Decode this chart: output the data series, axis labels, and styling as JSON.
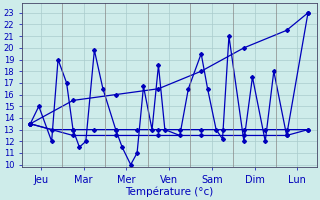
{
  "xlabel": "Température (°c)",
  "ylim": [
    9.8,
    23.8
  ],
  "yticks": [
    10,
    11,
    12,
    13,
    14,
    15,
    16,
    17,
    18,
    19,
    20,
    21,
    22,
    23
  ],
  "background_color": "#ceecea",
  "grid_color": "#aacccc",
  "line_color": "#0000bb",
  "days": [
    "Jeu",
    "Mar",
    "Mer",
    "Ven",
    "Sam",
    "Dim",
    "Lun"
  ],
  "line1_x": [
    0.5,
    1.0,
    1.5,
    2.0,
    2.5,
    3.0,
    3.5,
    4.0,
    4.5,
    5.0,
    5.5,
    6.0,
    6.5,
    7.0
  ],
  "line1_y": [
    13.5,
    13.0,
    13.0,
    13.0,
    13.0,
    13.0,
    13.0,
    13.0,
    13.0,
    13.0,
    13.0,
    13.0,
    13.0,
    13.0
  ],
  "line2_x": [
    0.5,
    1.5,
    2.5,
    3.5,
    4.5,
    5.5,
    6.5,
    7.0
  ],
  "line2_y": [
    13.5,
    15.5,
    16.0,
    16.5,
    18.0,
    20.0,
    21.5,
    23.0
  ],
  "line3_x": [
    0.5,
    1.5,
    2.5,
    3.5,
    4.5,
    5.5,
    6.5,
    7.0
  ],
  "line3_y": [
    13.5,
    12.5,
    12.5,
    12.5,
    12.5,
    12.5,
    12.5,
    13.0
  ],
  "zigzag_x": [
    0.5,
    0.7,
    1.0,
    1.15,
    1.35,
    1.5,
    1.65,
    1.8,
    2.0,
    2.2,
    2.5,
    2.65,
    2.85,
    3.0,
    3.15,
    3.35,
    3.5,
    3.65,
    4.0,
    4.2,
    4.5,
    4.65,
    4.85,
    5.0,
    5.15,
    5.5,
    5.7,
    6.0,
    6.2,
    6.5,
    7.0
  ],
  "zigzag_y": [
    13.5,
    15.0,
    12.0,
    19.0,
    17.0,
    13.0,
    11.5,
    12.0,
    19.8,
    16.5,
    13.0,
    11.5,
    10.0,
    11.0,
    16.7,
    13.0,
    18.5,
    13.0,
    12.5,
    16.5,
    19.5,
    16.5,
    13.0,
    12.2,
    21.0,
    12.0,
    17.5,
    12.0,
    18.0,
    12.5,
    23.0
  ]
}
